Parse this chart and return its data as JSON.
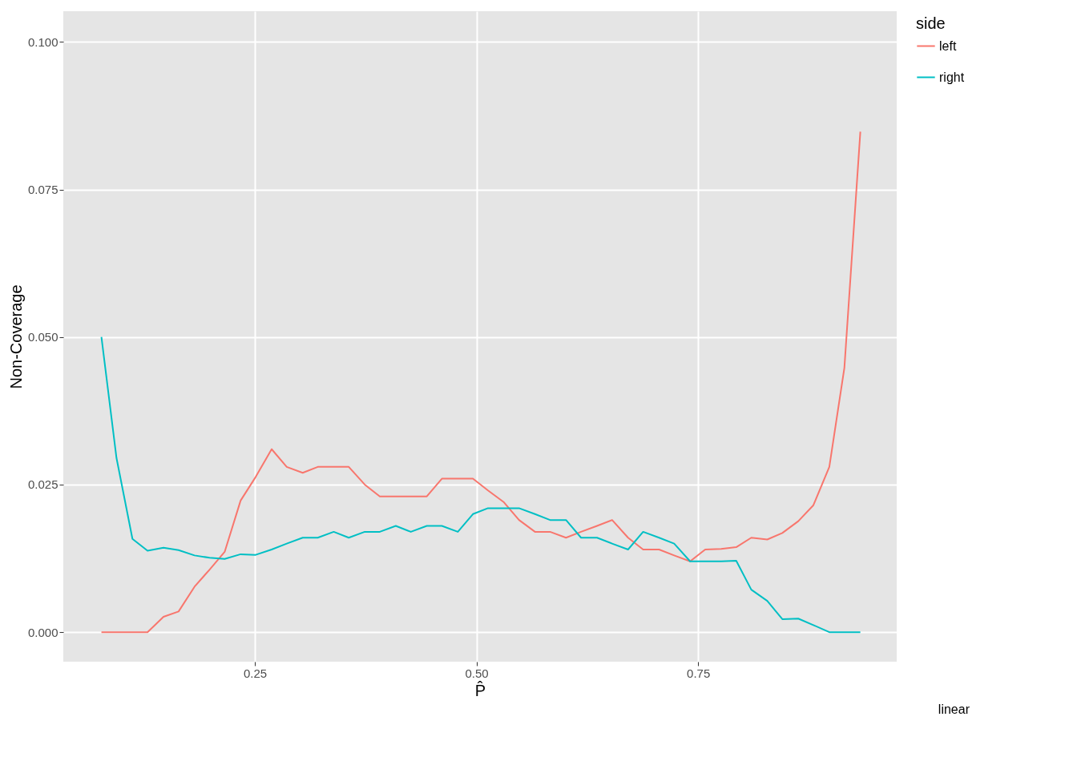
{
  "chart_data": {
    "type": "line",
    "xlabel": "P̂",
    "ylabel": "Non-Coverage",
    "legend_title": "side",
    "x": [
      0.077,
      0.094,
      0.112,
      0.129,
      0.147,
      0.164,
      0.182,
      0.199,
      0.216,
      0.234,
      0.251,
      0.269,
      0.286,
      0.304,
      0.321,
      0.339,
      0.356,
      0.374,
      0.391,
      0.409,
      0.426,
      0.444,
      0.461,
      0.479,
      0.496,
      0.513,
      0.531,
      0.548,
      0.566,
      0.583,
      0.601,
      0.618,
      0.636,
      0.653,
      0.671,
      0.688,
      0.706,
      0.723,
      0.741,
      0.758,
      0.776,
      0.793,
      0.81,
      0.828,
      0.845,
      0.863,
      0.88,
      0.898,
      0.915,
      0.933
    ],
    "series": [
      {
        "name": "left",
        "color": "#f8766d",
        "values": [
          0,
          0,
          0,
          0,
          0.0026,
          0.0035,
          0.0077,
          0.0106,
          0.0136,
          0.0223,
          0.0263,
          0.031,
          0.028,
          0.027,
          0.028,
          0.028,
          0.028,
          0.025,
          0.023,
          0.023,
          0.023,
          0.023,
          0.026,
          0.026,
          0.026,
          0.024,
          0.022,
          0.019,
          0.017,
          0.017,
          0.016,
          0.017,
          0.018,
          0.019,
          0.016,
          0.014,
          0.014,
          0.013,
          0.012,
          0.014,
          0.0141,
          0.0144,
          0.016,
          0.0157,
          0.0168,
          0.0188,
          0.0215,
          0.028,
          0.0448,
          0.0848
        ]
      },
      {
        "name": "right",
        "color": "#00bfc4",
        "values": [
          0.05,
          0.0295,
          0.0158,
          0.0138,
          0.0143,
          0.0139,
          0.013,
          0.0126,
          0.0124,
          0.0132,
          0.0131,
          0.014,
          0.015,
          0.016,
          0.016,
          0.017,
          0.016,
          0.017,
          0.017,
          0.018,
          0.017,
          0.018,
          0.018,
          0.017,
          0.02,
          0.021,
          0.021,
          0.021,
          0.02,
          0.019,
          0.019,
          0.016,
          0.016,
          0.015,
          0.014,
          0.017,
          0.016,
          0.015,
          0.012,
          0.012,
          0.012,
          0.0121,
          0.0072,
          0.0053,
          0.0022,
          0.0023,
          0.0012,
          0,
          0,
          0
        ]
      }
    ],
    "xlim": [
      0.034,
      0.974
    ],
    "xticks": [
      0.25,
      {
        "value": 0.5,
        "label": "0.50"
      },
      0.75
    ],
    "ylim": [
      -0.005,
      0.1052
    ],
    "yticks": [
      {
        "value": 0,
        "label": "0.000"
      },
      0.025,
      {
        "value": 0.05,
        "label": "0.050"
      },
      0.075,
      {
        "value": 0.1,
        "label": "0.100"
      }
    ],
    "grid": true,
    "legend": "right",
    "line_style": "solid",
    "annotations": [
      "linear"
    ]
  }
}
